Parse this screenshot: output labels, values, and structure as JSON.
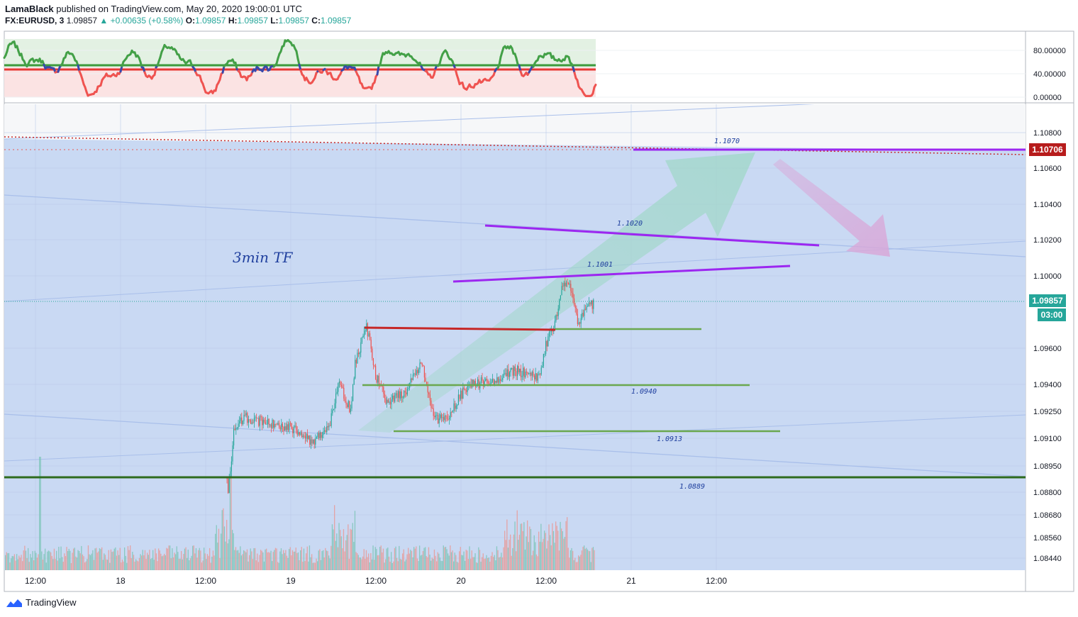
{
  "header": {
    "author": "LamaBlack",
    "published_text": "published on TradingView.com, May 20, 2020 19:00:01 UTC",
    "symbol": "FX:EURUSD, 3",
    "last": "1.09857",
    "change": "▲ +0.00635 (+0.58%)",
    "o_label": "O:",
    "o_value": "1.09857",
    "h_label": "H:",
    "h_value": "1.09857",
    "l_label": "L:",
    "l_value": "1.09857",
    "c_label": "C:",
    "c_value": "1.09857"
  },
  "footer": {
    "brand": "TradingView"
  },
  "colors": {
    "accent_green": "#26a69a",
    "bg_blue": "#c9d9f3",
    "purple": "#9c27f0",
    "red": "#c62828",
    "dark_green": "#2e6b1e",
    "light_green": "#6aa84f"
  },
  "chart_data": [
    {
      "type": "line",
      "name_hint": "oscillator",
      "yticks": [
        "80.00000",
        "40.00000",
        "0.00000"
      ],
      "ylim": [
        0,
        100
      ],
      "levels": [
        45,
        53
      ],
      "range_upper": 100,
      "notes": "green above upper level, red below lower level"
    },
    {
      "type": "candlestick",
      "title": "",
      "text_label": "3min TF",
      "xticks": [
        "12:00",
        "18",
        "12:00",
        "19",
        "12:00",
        "20",
        "12:00",
        "21",
        "12:00"
      ],
      "yticks": [
        "1.10800",
        "1.10600",
        "1.10400",
        "1.10200",
        "1.10000",
        "1.09600",
        "1.09400",
        "1.09250",
        "1.09100",
        "1.08950",
        "1.08800",
        "1.08680",
        "1.08560",
        "1.08440"
      ],
      "ylim": [
        1.0835,
        1.1125
      ],
      "current_price": "1.09857",
      "countdown": "03:00",
      "alert_price": "1.10706",
      "levels": [
        {
          "label": "1.1070",
          "value": 1.107,
          "color": "purple"
        },
        {
          "label": "1.1020",
          "value": 1.102,
          "color": "purple"
        },
        {
          "label": "1.1001",
          "value": 1.1001,
          "color": "purple"
        },
        {
          "label": "1.0940",
          "value": 1.094,
          "color": "green"
        },
        {
          "label": "1.0913",
          "value": 1.0913,
          "color": "green"
        },
        {
          "label": "1.0889",
          "value": 1.0889,
          "color": "dark-green"
        }
      ],
      "price_path": [
        {
          "x": "12:00 May 18",
          "y": 1.0897
        },
        {
          "x": "May 19 00:00",
          "y": 1.0915
        },
        {
          "x": "May 19 06:00",
          "y": 1.0905
        },
        {
          "x": "May 19 09:00",
          "y": 1.0935
        },
        {
          "x": "May 19 12:00",
          "y": 1.0975
        },
        {
          "x": "May 19 15:00",
          "y": 1.0935
        },
        {
          "x": "May 19 19:00",
          "y": 1.0915
        },
        {
          "x": "May 20 06:00",
          "y": 1.094
        },
        {
          "x": "May 20 11:00",
          "y": 1.0945
        },
        {
          "x": "May 20 14:00",
          "y": 1.1
        },
        {
          "x": "May 20 16:00",
          "y": 1.0975
        },
        {
          "x": "May 20 19:00",
          "y": 1.0986
        }
      ],
      "projection": "arrow up to 1.1070 then arrow down to ~1.1010"
    }
  ]
}
